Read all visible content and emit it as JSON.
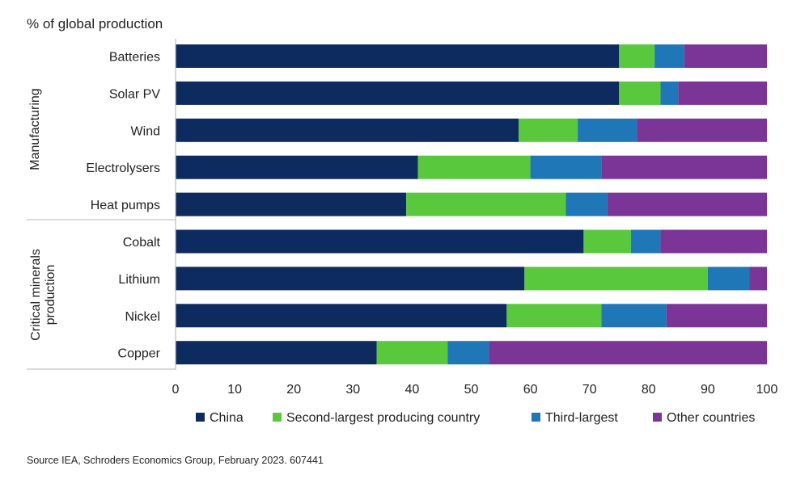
{
  "chart_data": {
    "type": "bar",
    "orientation": "horizontal",
    "stacked": true,
    "ylabel": "% of global production",
    "xlim": [
      0,
      100
    ],
    "xticks": [
      0,
      10,
      20,
      30,
      40,
      50,
      60,
      70,
      80,
      90,
      100
    ],
    "grid": false,
    "legend_position": "bottom",
    "groups": [
      {
        "label": "Manufacturing",
        "categories": [
          "Batteries",
          "Solar PV",
          "Wind",
          "Electrolysers",
          "Heat pumps"
        ]
      },
      {
        "label": "Critical minerals production",
        "categories": [
          "Cobalt",
          "Lithium",
          "Nickel",
          "Copper"
        ]
      }
    ],
    "categories": [
      "Batteries",
      "Solar PV",
      "Wind",
      "Electrolysers",
      "Heat pumps",
      "Cobalt",
      "Lithium",
      "Nickel",
      "Copper"
    ],
    "series": [
      {
        "name": "China",
        "color": "#0d2b5e",
        "values": [
          75,
          75,
          58,
          41,
          39,
          69,
          59,
          56,
          34
        ]
      },
      {
        "name": "Second-largest producing country",
        "color": "#5ac83c",
        "values": [
          6,
          7,
          10,
          19,
          27,
          8,
          31,
          16,
          12
        ]
      },
      {
        "name": "Third-largest",
        "color": "#1f77b8",
        "values": [
          5,
          3,
          10,
          12,
          7,
          5,
          7,
          11,
          7
        ]
      },
      {
        "name": "Other countries",
        "color": "#7a3596",
        "values": [
          14,
          15,
          22,
          28,
          27,
          18,
          3,
          17,
          47
        ]
      }
    ]
  },
  "source": "Source IEA, Schroders Economics Group, February 2023. 607441"
}
